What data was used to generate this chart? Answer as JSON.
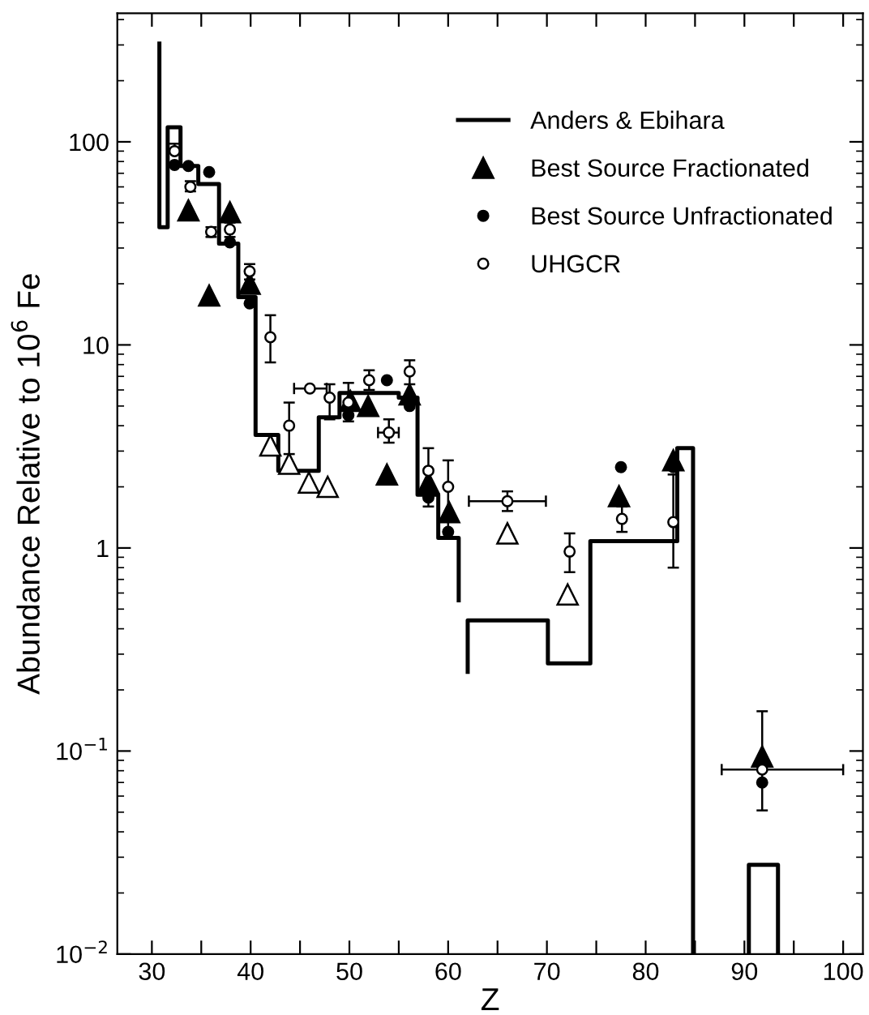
{
  "chart_data": {
    "type": "scatter",
    "xlabel": "Z",
    "ylabel": "Abundance Relative to 10$^{6}$ Fe",
    "xlim": [
      26.5,
      102
    ],
    "ylim": [
      0.01,
      430
    ],
    "log": "y",
    "legend": "top right",
    "grid": false,
    "xticks": [
      30,
      {
        "value": 35,
        "label": null
      },
      40,
      {
        "value": 45,
        "label": null
      },
      50,
      {
        "value": 55,
        "label": null
      },
      60,
      {
        "value": 65,
        "label": null
      },
      70,
      {
        "value": 75,
        "label": null
      },
      80,
      {
        "value": 85,
        "label": null
      },
      90,
      {
        "value": 95,
        "label": null
      },
      100
    ],
    "yticks": [
      {
        "value": 0.01,
        "label": "10$^{−2}$"
      },
      {
        "value": 0.1,
        "label": "10$^{−1}$"
      },
      1,
      10,
      100
    ],
    "series": [
      {
        "name": "Anders & Ebihara",
        "type": "line",
        "color": "#000000",
        "marker": "none",
        "line_style": "solid",
        "x": [
          30.76,
          30.76,
          31.6,
          31.6,
          32.9,
          32.9,
          34.7,
          34.7,
          36.8,
          36.8,
          38.75,
          38.75,
          40.5,
          40.5,
          42.8,
          42.8,
          46.9,
          46.9,
          49.0,
          49.0,
          55.0,
          55.0,
          56.9,
          56.9,
          59.0,
          59.0,
          61.07,
          61.07,
          61.5,
          61.98,
          61.98,
          70.1,
          70.1,
          74.4,
          74.4,
          83.2,
          83.2,
          84.8,
          84.8,
          87.5,
          90.45,
          90.45,
          93.4,
          93.4
        ],
        "values": [
          312,
          38,
          38,
          118,
          118,
          76,
          76,
          62,
          62,
          31.5,
          31.5,
          17.2,
          17.2,
          3.6,
          3.6,
          2.4,
          2.4,
          4.4,
          4.4,
          5.8,
          5.8,
          5.5,
          5.5,
          1.83,
          1.83,
          1.12,
          1.12,
          0.54,
          null,
          0.24,
          0.44,
          0.44,
          0.27,
          0.27,
          1.08,
          1.08,
          3.1,
          3.1,
          0.01,
          null,
          0.01,
          0.0275,
          0.0275,
          0.01
        ]
      },
      {
        "name": "Best Source Fractionated",
        "color": "#000000",
        "marker": "triangle",
        "x": [
          33.7,
          35.8,
          37.9,
          39.9,
          50.1,
          51.9,
          53.8,
          56.1,
          58.0,
          60.1,
          77.3,
          82.8,
          91.8
        ],
        "values": [
          46,
          17.5,
          45,
          20,
          5.3,
          5.0,
          2.3,
          5.7,
          2.1,
          1.5,
          1.8,
          2.7,
          0.094
        ]
      },
      {
        "color": "#ffffff",
        "marker": "triangle",
        "x": [
          42.0,
          43.9,
          45.9,
          47.8,
          66.0,
          72.1
        ],
        "values": [
          3.2,
          2.6,
          2.1,
          2.0,
          1.18,
          0.59
        ]
      },
      {
        "name": "Best Source Unfractionated",
        "color": "#000000",
        "marker": "circle",
        "x": [
          32.3,
          33.7,
          35.8,
          37.9,
          39.9,
          49.9,
          53.8,
          56.1,
          58.0,
          60.0,
          77.5,
          82.8,
          91.8
        ],
        "values": [
          77,
          76,
          71,
          32,
          16,
          4.5,
          6.7,
          5.0,
          1.77,
          1.2,
          2.5,
          2.5,
          0.07
        ]
      },
      {
        "name": "UHGCR",
        "color": "#ffffff",
        "marker": "circle",
        "x": [
          32.3,
          33.9,
          36.0,
          37.9,
          39.9,
          42.0,
          43.9,
          46.0,
          48.0,
          49.9,
          52.0,
          56.1,
          54.0,
          58.0,
          60.0,
          66.0,
          72.3,
          77.6,
          82.8,
          91.8
        ],
        "values": [
          90,
          60,
          36,
          37,
          23,
          10.9,
          4.0,
          6.1,
          5.5,
          5.2,
          6.7,
          7.4,
          3.7,
          2.4,
          2.0,
          1.7,
          0.96,
          1.39,
          1.34,
          0.081
        ],
        "errors": [
          [
            90,
            98
          ],
          [
            57,
            64
          ],
          [
            34,
            38
          ],
          [
            34,
            40
          ],
          [
            21,
            25
          ],
          [
            8.2,
            14
          ],
          [
            2.9,
            5.2
          ],
          null,
          [
            4.3,
            6.4
          ],
          [
            4.2,
            6.5
          ],
          [
            6.0,
            7.5
          ],
          [
            6.4,
            8.4
          ],
          [
            3.3,
            4.3
          ],
          [
            1.6,
            3.1
          ],
          [
            1.2,
            2.7
          ],
          [
            1.52,
            1.9
          ],
          [
            0.76,
            1.18
          ],
          [
            1.2,
            1.6
          ],
          [
            0.8,
            2.3
          ],
          [
            0.051,
            0.157
          ]
        ],
        "xerrors": [
          null,
          null,
          null,
          null,
          null,
          null,
          null,
          [
            44.4,
            47.7
          ],
          null,
          null,
          null,
          null,
          [
            52.9,
            55.0
          ],
          null,
          null,
          [
            62.1,
            69.9
          ],
          null,
          null,
          null,
          [
            87.7,
            100.0
          ]
        ]
      }
    ]
  }
}
